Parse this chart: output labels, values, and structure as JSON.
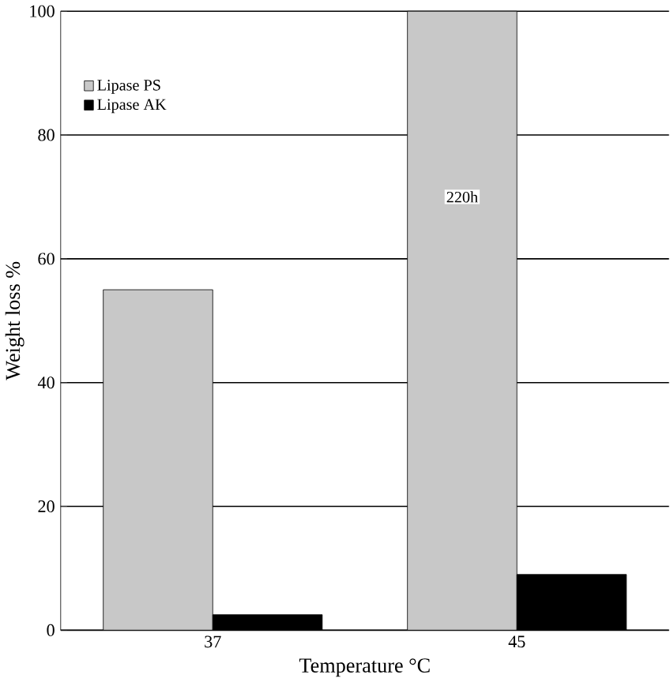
{
  "chart_data": {
    "type": "bar",
    "xlabel": "Temperature °C",
    "ylabel": "Weight loss %",
    "categories": [
      "37",
      "45"
    ],
    "series": [
      {
        "name": "Lipase PS",
        "color": "#c8c8c8",
        "values": [
          55,
          100
        ]
      },
      {
        "name": "Lipase AK",
        "color": "#000000",
        "values": [
          2.5,
          9
        ]
      }
    ],
    "ylim": [
      0,
      100
    ],
    "yticks": [
      0,
      20,
      40,
      60,
      80,
      100
    ],
    "grid": "y",
    "legend": "top left",
    "annotations": [
      {
        "text": "220h",
        "x": "45",
        "y": 70
      }
    ]
  }
}
